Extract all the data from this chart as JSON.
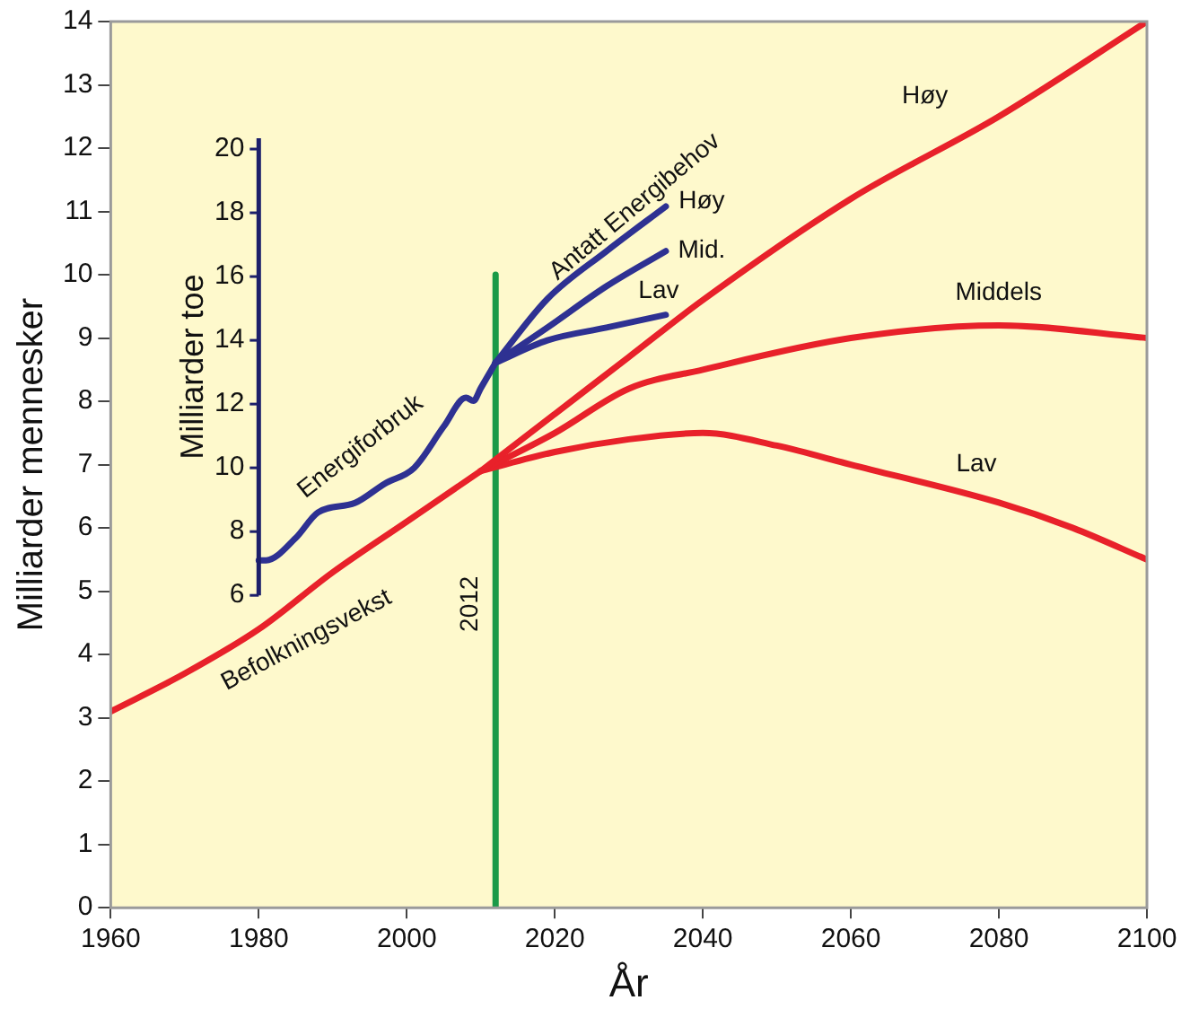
{
  "chart_data": {
    "type": "line",
    "xlabel": "År",
    "ylabel": "Milliarder mennesker",
    "y2label": "Milliarder toe",
    "xlim": [
      1960,
      2100
    ],
    "xticks": [
      1960,
      1980,
      2000,
      2020,
      2040,
      2060,
      2080,
      2100
    ],
    "ylim": [
      0,
      14
    ],
    "yticks": [
      0,
      1,
      2,
      3,
      4,
      5,
      6,
      7,
      8,
      9,
      10,
      11,
      12,
      13,
      14
    ],
    "y2lim": [
      -3.8,
      24
    ],
    "y2ticks": [
      6,
      8,
      10,
      12,
      14,
      16,
      18,
      20
    ],
    "grid": false,
    "line_style": "solid",
    "marker": "none",
    "series": [
      {
        "name": "Befolkningsvekst",
        "color": "#e8212a",
        "x": [
          1960,
          1970,
          1980,
          1990,
          2000,
          2010
        ],
        "values": [
          3.1,
          3.7,
          4.4,
          5.3,
          6.1,
          6.9
        ]
      },
      {
        "name": "Høy",
        "color": "#e8212a",
        "x": [
          2010,
          2020,
          2030,
          2040,
          2060,
          2080,
          2100
        ],
        "values": [
          6.9,
          7.8,
          8.7,
          9.6,
          11.2,
          12.5,
          14
        ]
      },
      {
        "name": "Middels",
        "color": "#e8212a",
        "x": [
          2010,
          2020,
          2030,
          2040,
          2060,
          2080,
          2100
        ],
        "values": [
          6.9,
          7.5,
          8.2,
          8.5,
          9.0,
          9.2,
          9.0
        ]
      },
      {
        "name": "Lav",
        "color": "#e8212a",
        "x": [
          2010,
          2020,
          2030,
          2040,
          2050,
          2060,
          2080,
          2090,
          2100
        ],
        "values": [
          6.9,
          7.2,
          7.4,
          7.5,
          7.3,
          7.0,
          6.4,
          6.0,
          5.5
        ]
      },
      {
        "name": "Energiforbruk",
        "color": "#2e3192",
        "axis": "y2",
        "x": [
          1980,
          1981,
          1985,
          1988,
          1993,
          1997,
          2001,
          2005,
          2008,
          2009,
          2010,
          2012
        ],
        "values": [
          7.1,
          7.1,
          7.8,
          8.6,
          8.9,
          9.5,
          10.0,
          11.3,
          12.2,
          12.1,
          12.5,
          13.3
        ]
      },
      {
        "name": "Høy",
        "color": "#2e3192",
        "axis": "y2",
        "x": [
          2012,
          2019,
          2027,
          2035
        ],
        "values": [
          13.3,
          15.3,
          16.8,
          18.2
        ]
      },
      {
        "name": "Mid.",
        "color": "#2e3192",
        "axis": "y2",
        "x": [
          2012,
          2019,
          2027,
          2035
        ],
        "values": [
          13.3,
          14.4,
          15.7,
          16.8
        ]
      },
      {
        "name": "Lav",
        "color": "#2e3192",
        "axis": "y2",
        "x": [
          2012,
          2019,
          2027,
          2035
        ],
        "values": [
          13.3,
          14.0,
          14.4,
          14.8
        ]
      },
      {
        "name": "2012",
        "color": "#1a9a48",
        "x": [
          2012,
          2012
        ],
        "values": [
          0,
          10
        ]
      }
    ],
    "annotations": [
      "Antatt Energibehov"
    ]
  }
}
